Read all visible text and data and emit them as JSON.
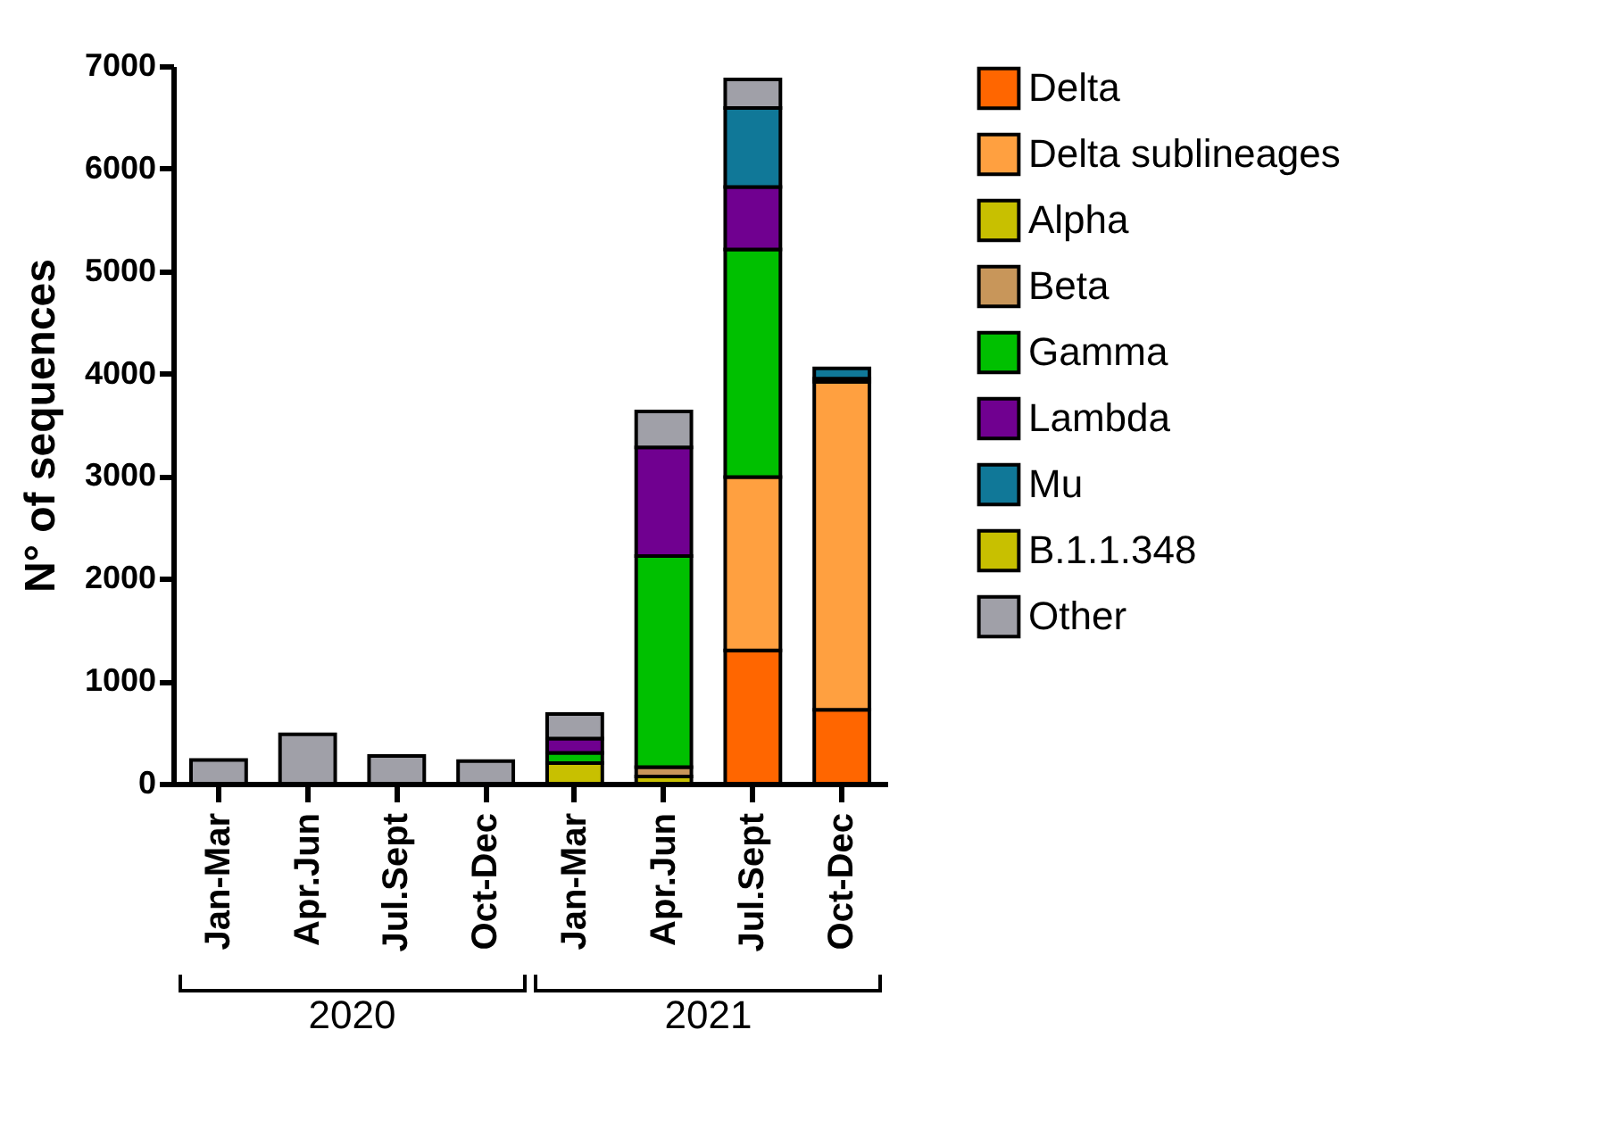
{
  "chart_data": {
    "type": "bar",
    "stacked": true,
    "ylabel": "N° of sequences",
    "ylim": [
      0,
      7000
    ],
    "yticks": [
      0,
      1000,
      2000,
      3000,
      4000,
      5000,
      6000,
      7000
    ],
    "grid": false,
    "legend": "top right",
    "categories": [
      "Jan-Mar",
      "Apr.Jun",
      "Jul.Sept",
      "Oct-Dec",
      "Jan-Mar",
      "Apr.Jun",
      "Jul.Sept",
      "Oct-Dec"
    ],
    "annotations": [
      "2020",
      "2021"
    ],
    "series": [
      {
        "name": "Delta",
        "color": "#ff6600",
        "values": [
          null,
          null,
          null,
          null,
          null,
          null,
          1300,
          720
        ]
      },
      {
        "name": "Delta sublineages",
        "color": "#ffa040",
        "values": [
          null,
          null,
          null,
          null,
          null,
          null,
          1690,
          3200
        ]
      },
      {
        "name": "Alpha",
        "color": "#c8c000",
        "values": [
          null,
          null,
          null,
          null,
          200,
          70,
          null,
          null
        ]
      },
      {
        "name": "Beta",
        "color": "#c8965a",
        "values": [
          null,
          null,
          null,
          null,
          null,
          90,
          null,
          null
        ]
      },
      {
        "name": "Gamma",
        "color": "#00c000",
        "values": [
          null,
          null,
          null,
          null,
          100,
          2060,
          2220,
          null
        ]
      },
      {
        "name": "Lambda",
        "color": "#700090",
        "values": [
          null,
          null,
          null,
          null,
          140,
          1060,
          610,
          30
        ]
      },
      {
        "name": "Mu",
        "color": "#107898",
        "values": [
          null,
          null,
          null,
          null,
          null,
          null,
          770,
          100
        ]
      },
      {
        "name": "B.1.1.348",
        "color": "#c8c000",
        "values": [
          null,
          null,
          null,
          null,
          null,
          null,
          null,
          null
        ]
      },
      {
        "name": "Other",
        "color": "#a0a0a8",
        "values": [
          230,
          480,
          270,
          220,
          240,
          350,
          280,
          null
        ]
      }
    ]
  }
}
